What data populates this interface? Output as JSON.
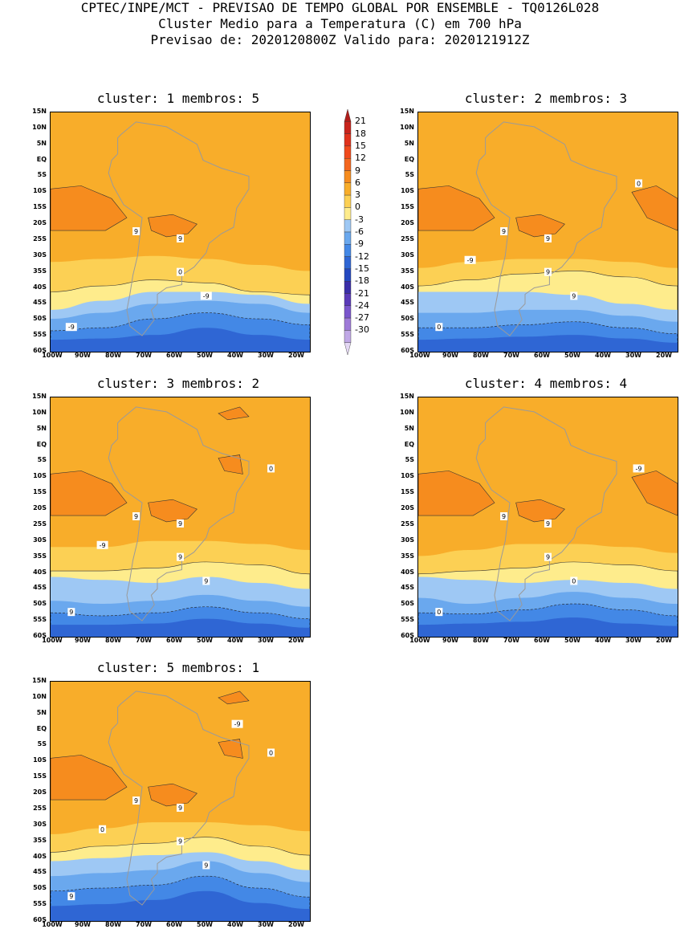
{
  "header": {
    "line1": "CPTEC/INPE/MCT - PREVISAO DE TEMPO GLOBAL POR ENSEMBLE - TQ0126L028",
    "line2": "Cluster Medio para a Temperatura (C) em 700 hPa",
    "line3": "Previsao de: 2020120800Z    Valido para: 2020121912Z"
  },
  "panels": [
    {
      "title": "cluster: 1   membros: 5"
    },
    {
      "title": "cluster: 2   membros: 3"
    },
    {
      "title": "cluster: 3   membros: 2"
    },
    {
      "title": "cluster: 4   membros: 4"
    },
    {
      "title": "cluster: 5   membros: 1"
    }
  ],
  "axes": {
    "lat_ticks": [
      "15N",
      "10N",
      "5N",
      "EQ",
      "5S",
      "10S",
      "15S",
      "20S",
      "25S",
      "30S",
      "35S",
      "40S",
      "45S",
      "50S",
      "55S",
      "60S"
    ],
    "lon_ticks": [
      "100W",
      "90W",
      "80W",
      "70W",
      "60W",
      "50W",
      "40W",
      "30W",
      "20W"
    ]
  },
  "colorbar": {
    "levels": [
      "21",
      "18",
      "15",
      "12",
      "9",
      "6",
      "3",
      "0",
      "-3",
      "-6",
      "-9",
      "-12",
      "-15",
      "-18",
      "-21",
      "-24",
      "-27",
      "-30"
    ],
    "colors": [
      "#b01d1a",
      "#c8241c",
      "#e0321c",
      "#f04a1c",
      "#f4661e",
      "#f68c1e",
      "#f8ad2a",
      "#fcd054",
      "#feec8c",
      "#9ec8f4",
      "#6aa8ee",
      "#4388e6",
      "#2f66d4",
      "#2448c0",
      "#3a2ea8",
      "#5a3ab8",
      "#7a56cc",
      "#9e7ad8",
      "#c0a8e6",
      "#e4d8f4"
    ]
  },
  "contour_labels": {
    "panel1": [
      "9",
      "9",
      "0",
      "-9",
      "-9"
    ],
    "panel2": [
      "9",
      "9",
      "9",
      "9",
      "0",
      "0",
      "-9"
    ],
    "panel3": [
      "9",
      "9",
      "9",
      "9",
      "9",
      "0",
      "-9"
    ],
    "panel4": [
      "9",
      "9",
      "9",
      "0",
      "0",
      "-9"
    ],
    "panel5": [
      "9",
      "9",
      "9",
      "9",
      "9",
      "0",
      "0",
      "-9"
    ]
  }
}
